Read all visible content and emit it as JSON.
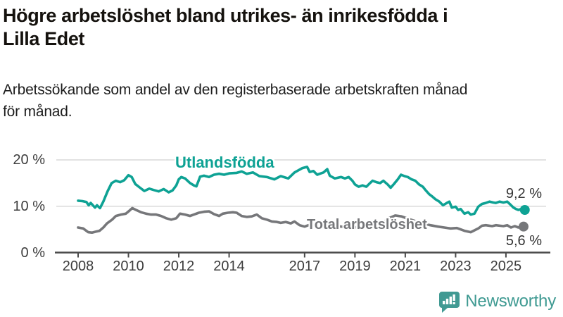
{
  "header": {
    "title_lines": [
      "Högre arbetslöshet bland utrikes- än inrikesfödda i",
      "Lilla Edet"
    ],
    "subtitle_lines": [
      "Arbetssökande som andel av den registerbaserade arbetskraften månad",
      "för månad."
    ]
  },
  "chart_data": {
    "type": "line",
    "unit": "%",
    "x_label": "",
    "y_label": "",
    "x_range": [
      2008,
      2025.75
    ],
    "ylim": [
      0,
      22
    ],
    "grid": "horizontal",
    "gridlines_percent": [
      10,
      20
    ],
    "x_ticks": [
      2008,
      2010,
      2012,
      2014,
      2017,
      2019,
      2021,
      2023,
      2025
    ],
    "y_ticks": [
      {
        "value": 0,
        "label": "0 %"
      },
      {
        "value": 10,
        "label": "10 %"
      },
      {
        "value": 20,
        "label": "20 %"
      }
    ],
    "series": [
      {
        "name": "Utlandsfödda",
        "color": "#0ea294",
        "end_value": 9.2,
        "end_label": "9,2 %",
        "points": [
          [
            2008.0,
            11.2
          ],
          [
            2008.17,
            11.1
          ],
          [
            2008.33,
            10.9
          ],
          [
            2008.42,
            10.2
          ],
          [
            2008.5,
            10.7
          ],
          [
            2008.67,
            9.7
          ],
          [
            2008.75,
            10.2
          ],
          [
            2008.87,
            9.6
          ],
          [
            2009.0,
            11.0
          ],
          [
            2009.17,
            13.2
          ],
          [
            2009.33,
            15.0
          ],
          [
            2009.5,
            15.5
          ],
          [
            2009.67,
            15.2
          ],
          [
            2009.83,
            15.6
          ],
          [
            2010.0,
            16.7
          ],
          [
            2010.13,
            16.3
          ],
          [
            2010.27,
            14.8
          ],
          [
            2010.46,
            14.0
          ],
          [
            2010.63,
            13.3
          ],
          [
            2010.83,
            13.8
          ],
          [
            2011.0,
            13.5
          ],
          [
            2011.2,
            13.2
          ],
          [
            2011.4,
            13.7
          ],
          [
            2011.6,
            13.0
          ],
          [
            2011.75,
            13.4
          ],
          [
            2011.9,
            14.5
          ],
          [
            2012.0,
            15.8
          ],
          [
            2012.1,
            16.3
          ],
          [
            2012.25,
            16.0
          ],
          [
            2012.45,
            15.0
          ],
          [
            2012.6,
            14.5
          ],
          [
            2012.7,
            14.3
          ],
          [
            2012.85,
            16.4
          ],
          [
            2013.0,
            16.6
          ],
          [
            2013.2,
            16.3
          ],
          [
            2013.4,
            16.8
          ],
          [
            2013.6,
            17.0
          ],
          [
            2013.8,
            16.8
          ],
          [
            2014.0,
            17.1
          ],
          [
            2014.3,
            17.2
          ],
          [
            2014.5,
            17.5
          ],
          [
            2014.7,
            17.0
          ],
          [
            2014.95,
            17.3
          ],
          [
            2015.2,
            16.5
          ],
          [
            2015.5,
            16.3
          ],
          [
            2015.8,
            15.8
          ],
          [
            2016.05,
            16.5
          ],
          [
            2016.35,
            16.0
          ],
          [
            2016.6,
            17.3
          ],
          [
            2016.9,
            18.2
          ],
          [
            2017.1,
            18.5
          ],
          [
            2017.2,
            17.4
          ],
          [
            2017.35,
            17.6
          ],
          [
            2017.5,
            16.8
          ],
          [
            2017.6,
            17.0
          ],
          [
            2017.75,
            17.3
          ],
          [
            2017.9,
            18.0
          ],
          [
            2018.0,
            16.6
          ],
          [
            2018.2,
            16.0
          ],
          [
            2018.45,
            16.3
          ],
          [
            2018.6,
            16.0
          ],
          [
            2018.75,
            16.3
          ],
          [
            2018.9,
            15.5
          ],
          [
            2019.0,
            14.7
          ],
          [
            2019.15,
            14.2
          ],
          [
            2019.3,
            14.5
          ],
          [
            2019.45,
            14.2
          ],
          [
            2019.6,
            15.0
          ],
          [
            2019.7,
            15.5
          ],
          [
            2019.85,
            15.2
          ],
          [
            2020.0,
            15.0
          ],
          [
            2020.13,
            15.5
          ],
          [
            2020.3,
            14.7
          ],
          [
            2020.42,
            14.0
          ],
          [
            2020.55,
            14.8
          ],
          [
            2020.7,
            15.8
          ],
          [
            2020.83,
            16.8
          ],
          [
            2020.97,
            16.5
          ],
          [
            2021.1,
            16.3
          ],
          [
            2021.25,
            15.8
          ],
          [
            2021.4,
            15.5
          ],
          [
            2021.55,
            14.7
          ],
          [
            2021.7,
            14.2
          ],
          [
            2021.8,
            13.5
          ],
          [
            2021.95,
            12.6
          ],
          [
            2022.05,
            12.2
          ],
          [
            2022.2,
            11.5
          ],
          [
            2022.35,
            11.0
          ],
          [
            2022.5,
            10.2
          ],
          [
            2022.65,
            10.7
          ],
          [
            2022.75,
            11.0
          ],
          [
            2022.85,
            9.7
          ],
          [
            2023.0,
            9.9
          ],
          [
            2023.1,
            9.2
          ],
          [
            2023.2,
            9.4
          ],
          [
            2023.35,
            8.4
          ],
          [
            2023.5,
            8.7
          ],
          [
            2023.6,
            8.2
          ],
          [
            2023.75,
            8.4
          ],
          [
            2023.9,
            9.9
          ],
          [
            2024.05,
            10.5
          ],
          [
            2024.2,
            10.7
          ],
          [
            2024.35,
            11.0
          ],
          [
            2024.5,
            10.8
          ],
          [
            2024.6,
            10.7
          ],
          [
            2024.75,
            11.0
          ],
          [
            2024.9,
            10.8
          ],
          [
            2025.05,
            11.0
          ],
          [
            2025.15,
            10.5
          ],
          [
            2025.3,
            9.7
          ],
          [
            2025.4,
            9.4
          ],
          [
            2025.5,
            9.2
          ],
          [
            2025.6,
            9.4
          ],
          [
            2025.75,
            9.2
          ]
        ]
      },
      {
        "name": "Total arbetslöshet",
        "color": "#76777a",
        "end_value": 5.6,
        "end_label": "5,6 %",
        "points": [
          [
            2008.0,
            5.4
          ],
          [
            2008.2,
            5.2
          ],
          [
            2008.4,
            4.4
          ],
          [
            2008.55,
            4.3
          ],
          [
            2008.7,
            4.5
          ],
          [
            2008.85,
            4.7
          ],
          [
            2009.0,
            5.4
          ],
          [
            2009.15,
            6.3
          ],
          [
            2009.35,
            7.1
          ],
          [
            2009.5,
            7.9
          ],
          [
            2009.7,
            8.2
          ],
          [
            2009.9,
            8.4
          ],
          [
            2010.05,
            9.1
          ],
          [
            2010.15,
            9.6
          ],
          [
            2010.3,
            9.2
          ],
          [
            2010.5,
            8.7
          ],
          [
            2010.7,
            8.4
          ],
          [
            2010.9,
            8.2
          ],
          [
            2011.1,
            8.2
          ],
          [
            2011.3,
            7.9
          ],
          [
            2011.5,
            7.4
          ],
          [
            2011.7,
            7.1
          ],
          [
            2011.9,
            7.4
          ],
          [
            2012.05,
            8.4
          ],
          [
            2012.25,
            8.2
          ],
          [
            2012.45,
            7.9
          ],
          [
            2012.6,
            8.2
          ],
          [
            2012.8,
            8.6
          ],
          [
            2013.0,
            8.8
          ],
          [
            2013.2,
            8.9
          ],
          [
            2013.4,
            8.3
          ],
          [
            2013.6,
            7.9
          ],
          [
            2013.75,
            8.4
          ],
          [
            2013.95,
            8.6
          ],
          [
            2014.15,
            8.7
          ],
          [
            2014.3,
            8.6
          ],
          [
            2014.5,
            7.9
          ],
          [
            2014.7,
            7.7
          ],
          [
            2014.9,
            7.8
          ],
          [
            2015.1,
            8.2
          ],
          [
            2015.3,
            7.4
          ],
          [
            2015.5,
            7.1
          ],
          [
            2015.7,
            6.7
          ],
          [
            2015.9,
            6.6
          ],
          [
            2016.05,
            6.4
          ],
          [
            2016.25,
            6.6
          ],
          [
            2016.45,
            6.3
          ],
          [
            2016.6,
            6.7
          ],
          [
            2016.8,
            5.9
          ],
          [
            2017.0,
            5.6
          ],
          [
            2017.15,
            5.9
          ],
          [
            2017.3,
            6.1
          ],
          [
            2017.5,
            6.0
          ],
          [
            2017.75,
            5.8
          ],
          [
            2018.0,
            5.6
          ],
          [
            2018.3,
            5.7
          ],
          [
            2018.6,
            5.5
          ],
          [
            2018.9,
            5.4
          ],
          [
            2019.2,
            5.5
          ],
          [
            2019.5,
            5.6
          ],
          [
            2019.8,
            5.8
          ],
          [
            2020.1,
            6.4
          ],
          [
            2020.35,
            7.4
          ],
          [
            2020.6,
            8.0
          ],
          [
            2020.85,
            7.8
          ],
          [
            2021.1,
            7.3
          ],
          [
            2021.4,
            6.8
          ],
          [
            2021.7,
            6.3
          ],
          [
            2022.0,
            5.9
          ],
          [
            2022.3,
            5.6
          ],
          [
            2022.55,
            5.4
          ],
          [
            2022.8,
            5.2
          ],
          [
            2023.05,
            5.3
          ],
          [
            2023.35,
            4.7
          ],
          [
            2023.6,
            4.4
          ],
          [
            2023.9,
            5.2
          ],
          [
            2024.05,
            5.8
          ],
          [
            2024.2,
            5.9
          ],
          [
            2024.45,
            5.7
          ],
          [
            2024.6,
            5.9
          ],
          [
            2024.75,
            5.8
          ],
          [
            2024.9,
            5.7
          ],
          [
            2025.05,
            5.9
          ],
          [
            2025.2,
            5.4
          ],
          [
            2025.35,
            5.7
          ],
          [
            2025.5,
            5.4
          ],
          [
            2025.7,
            5.6
          ]
        ]
      }
    ]
  },
  "branding": {
    "logo_text": "Newsworthy",
    "logo_icon": "bar-chart-speech-bubble-icon",
    "logo_color": "#3f9a92"
  },
  "colors": {
    "background": "#ffffff",
    "gridline": "#d9d9d9",
    "axis": "#4a4a4a",
    "axis_text": "#3d3d3d",
    "title_text": "#15120e",
    "value_label_text": "#333333"
  }
}
